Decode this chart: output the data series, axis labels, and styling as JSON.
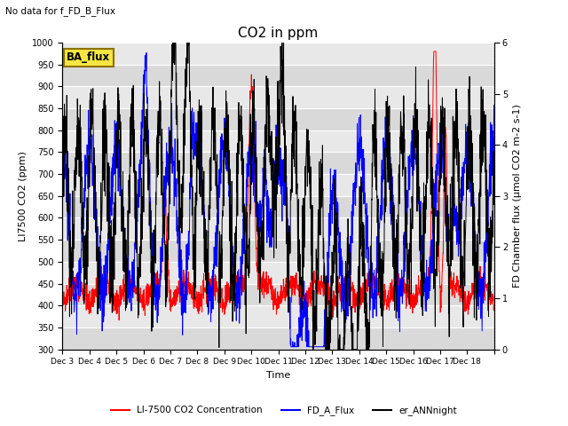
{
  "title": "CO2 in ppm",
  "no_data_text": "No data for f_FD_B_Flux",
  "box_label": "BA_flux",
  "ylabel_left": "LI7500 CO2 (ppm)",
  "ylabel_right": "FD Chamber flux (μmol CO2 m-2 s-1)",
  "xlabel": "Time",
  "ylim_left": [
    300,
    1000
  ],
  "ylim_right": [
    0.0,
    6.0
  ],
  "xtick_labels": [
    "Dec 3",
    "Dec 4",
    "Dec 5",
    "Dec 6",
    "Dec 7",
    "Dec 8",
    "Dec 9",
    "Dec 10",
    "Dec 11",
    "Dec 12",
    "Dec 13",
    "Dec 14",
    "Dec 15",
    "Dec 16",
    "Dec 17",
    "Dec 18"
  ],
  "legend_labels": [
    "LI-7500 CO2 Concentration",
    "FD_A_Flux",
    "er_ANNnight"
  ],
  "line_colors": [
    "red",
    "blue",
    "black"
  ],
  "plot_bg": "#e8e8e8",
  "band_color": "#d0d0d0",
  "n_points": 2000,
  "seed": 42
}
